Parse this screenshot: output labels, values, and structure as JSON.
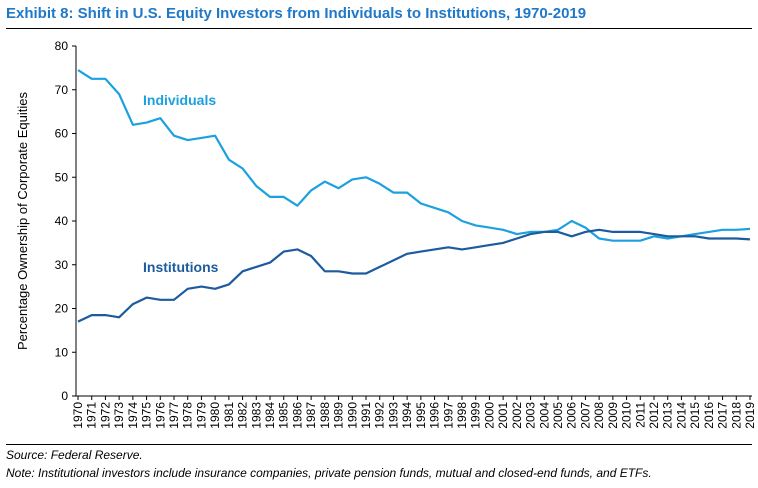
{
  "title": "Exhibit 8: Shift in U.S. Equity Investors from Individuals to Institutions, 1970-2019",
  "source": "Source: Federal Reserve.",
  "note": "Note: Institutional investors include insurance companies, private pension funds, mutual and closed-end funds, and ETFs.",
  "colors": {
    "title": "#1f78c8",
    "individuals": "#1ba1e0",
    "institutions": "#1c5b9e"
  },
  "chart_data": {
    "type": "line",
    "title": "Exhibit 8: Shift in U.S. Equity Investors from Individuals to Institutions, 1970-2019",
    "xlabel": "",
    "ylabel": "Percentage Ownership of Corporate Equities",
    "ylim": [
      0,
      80
    ],
    "yticks": [
      0,
      10,
      20,
      30,
      40,
      50,
      60,
      70,
      80
    ],
    "x": [
      1970,
      1971,
      1972,
      1973,
      1974,
      1975,
      1976,
      1977,
      1978,
      1979,
      1980,
      1981,
      1982,
      1983,
      1984,
      1985,
      1986,
      1987,
      1988,
      1989,
      1990,
      1991,
      1992,
      1993,
      1994,
      1995,
      1996,
      1997,
      1998,
      1999,
      2000,
      2001,
      2002,
      2003,
      2004,
      2005,
      2006,
      2007,
      2008,
      2009,
      2010,
      2011,
      2012,
      2013,
      2014,
      2015,
      2016,
      2017,
      2018,
      2019
    ],
    "xtick_labels": [
      "1970",
      "1971",
      "1972",
      "1973",
      "1974",
      "1975",
      "1976",
      "1977",
      "1978",
      "1979",
      "1980",
      "1981",
      "1982",
      "1983",
      "1984",
      "1985",
      "1986",
      "1987",
      "1988",
      "1989",
      "1990",
      "1991",
      "1992",
      "1993",
      "1994",
      "1995",
      "1996",
      "1997",
      "1998",
      "1999",
      "2000",
      "2001",
      "2002",
      "2003",
      "2004",
      "2005",
      "2006",
      "2007",
      "2008",
      "2009",
      "2010",
      "2011",
      "2012",
      "2013",
      "2014",
      "2015",
      "2016",
      "2017",
      "2018",
      "2019"
    ],
    "grid": false,
    "series": [
      {
        "name": "Individuals",
        "values": [
          74.5,
          72.5,
          72.5,
          69,
          62,
          62.5,
          63.5,
          59.5,
          58.5,
          59,
          59.5,
          54,
          52,
          48,
          45.5,
          45.5,
          43.5,
          47,
          49,
          47.5,
          49.5,
          50,
          48.5,
          46.5,
          46.5,
          44,
          43,
          42,
          40,
          39,
          38.5,
          38,
          37,
          37.5,
          37.5,
          38,
          40,
          38.5,
          36,
          35.5,
          35.5,
          35.5,
          36.5,
          36,
          36.5,
          37,
          37.5,
          38,
          38,
          38.2
        ]
      },
      {
        "name": "Institutions",
        "values": [
          17,
          18.5,
          18.5,
          18,
          21,
          22.5,
          22,
          22,
          24.5,
          25,
          24.5,
          25.5,
          28.5,
          29.5,
          30.5,
          33,
          33.5,
          32,
          28.5,
          28.5,
          28,
          28,
          29.5,
          31,
          32.5,
          33,
          33.5,
          34,
          33.5,
          34,
          34.5,
          35,
          36,
          37,
          37.5,
          37.5,
          36.5,
          37.5,
          38,
          37.5,
          37.5,
          37.5,
          37,
          36.5,
          36.5,
          36.5,
          36,
          36,
          36,
          35.8
        ]
      }
    ]
  }
}
